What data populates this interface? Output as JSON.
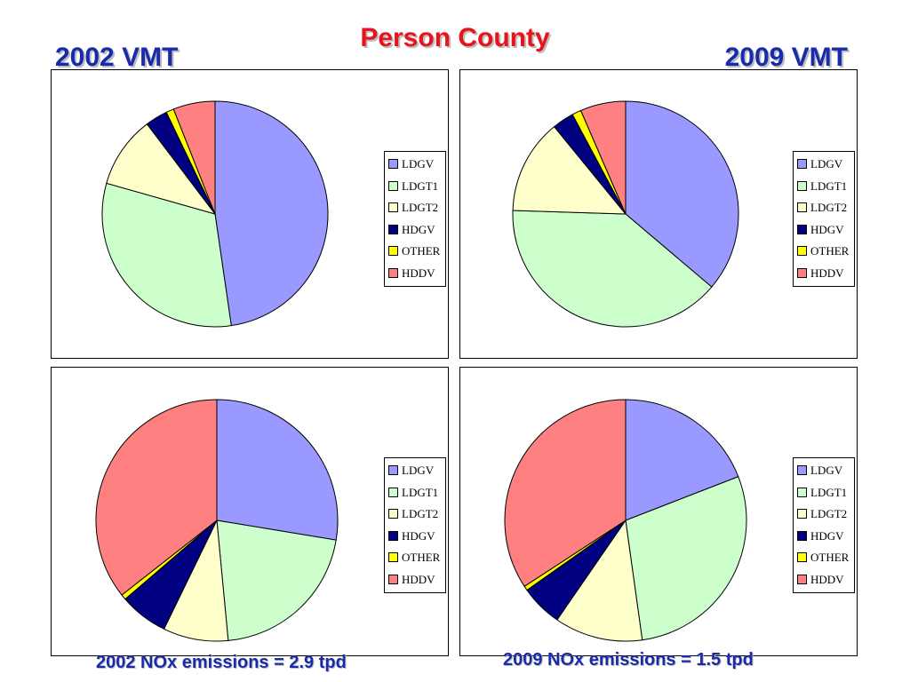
{
  "header": {
    "title": "Person County",
    "left_title": "2002 VMT",
    "right_title": "2009 VMT"
  },
  "captions": {
    "left": "2002 NOx emissions = 2.9 tpd",
    "right": "2009 NOx emissions = 1.5 tpd"
  },
  "chart_data": [
    {
      "type": "pie",
      "title": "2002 VMT",
      "categories": [
        "LDGV",
        "LDGT1",
        "LDGT2",
        "HDGV",
        "OTHER",
        "HDDV"
      ],
      "values": [
        47.7,
        31.7,
        10.3,
        3.2,
        1.1,
        6.0
      ],
      "colors": [
        "#9999ff",
        "#ccffcc",
        "#ffffcc",
        "#000080",
        "#ffff00",
        "#ff8080"
      ],
      "legend": "right"
    },
    {
      "type": "pie",
      "title": "2009 VMT",
      "categories": [
        "LDGV",
        "LDGT1",
        "LDGT2",
        "HDGV",
        "OTHER",
        "HDDV"
      ],
      "values": [
        36.2,
        39.3,
        13.6,
        3.1,
        1.3,
        6.5
      ],
      "colors": [
        "#9999ff",
        "#ccffcc",
        "#ffffcc",
        "#000080",
        "#ffff00",
        "#ff8080"
      ],
      "legend": "right"
    },
    {
      "type": "pie",
      "title": "2002 NOx emissions = 2.9 tpd",
      "categories": [
        "LDGV",
        "LDGT1",
        "LDGT2",
        "HDGV",
        "OTHER",
        "HDDV"
      ],
      "values": [
        27.6,
        20.9,
        8.7,
        6.5,
        0.7,
        35.6
      ],
      "colors": [
        "#9999ff",
        "#ccffcc",
        "#ffffcc",
        "#000080",
        "#ffff00",
        "#ff8080"
      ],
      "legend": "right"
    },
    {
      "type": "pie",
      "title": "2009 NOx emissions = 1.5 tpd",
      "categories": [
        "LDGV",
        "LDGT1",
        "LDGT2",
        "HDGV",
        "OTHER",
        "HDDV"
      ],
      "values": [
        19.1,
        28.7,
        11.8,
        5.6,
        0.6,
        34.2
      ],
      "colors": [
        "#9999ff",
        "#ccffcc",
        "#ffffcc",
        "#000080",
        "#ffff00",
        "#ff8080"
      ],
      "legend": "right"
    }
  ]
}
